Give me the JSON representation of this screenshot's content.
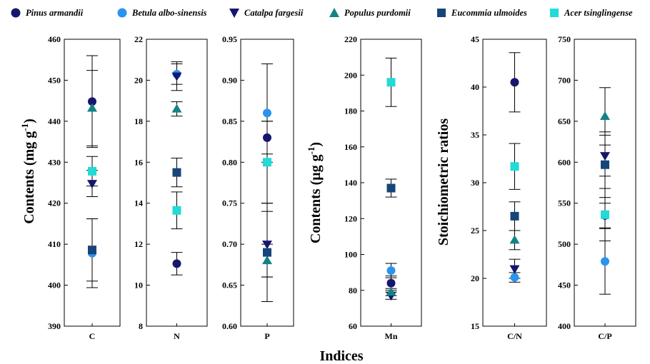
{
  "legend": [
    {
      "name": "Pinus armandii",
      "color": "#16166e",
      "marker": "circle"
    },
    {
      "name": "Betula albo-sinensis",
      "color": "#2a93f0",
      "marker": "circle"
    },
    {
      "name": "Catalpa fargesii",
      "color": "#16166e",
      "marker": "triangle-down"
    },
    {
      "name": "Populus purdomii",
      "color": "#138383",
      "marker": "triangle-up"
    },
    {
      "name": "Eucommia ulmoides",
      "color": "#17457a",
      "marker": "square"
    },
    {
      "name": "Acer tsinglingense",
      "color": "#22dad6",
      "marker": "square"
    }
  ],
  "x_title": "Indices",
  "y_titles": {
    "left": "Contents (mg g-1)",
    "middle": "Contents (μg g-1)",
    "right": "Stoichiometric ratios"
  },
  "chart_data": [
    {
      "type": "scatter",
      "category": "C",
      "ylim": [
        390,
        460
      ],
      "ticks": [
        "390",
        "400",
        "410",
        "420",
        "430",
        "440",
        "450",
        "460"
      ],
      "series": [
        {
          "name": "Pinus armandii",
          "value": 444.8,
          "error": 11.2
        },
        {
          "name": "Betula albo-sinensis",
          "value": 407.8,
          "error": 8.4
        },
        {
          "name": "Catalpa fargesii",
          "value": 424.8,
          "error": 3.2
        },
        {
          "name": "Populus purdomii",
          "value": 443.2,
          "error": 9.2
        },
        {
          "name": "Eucommia ulmoides",
          "value": 408.6,
          "error": 7.6
        },
        {
          "name": "Acer tsinglingense",
          "value": 427.8,
          "error": 3.6
        }
      ]
    },
    {
      "type": "scatter",
      "category": "N",
      "ylim": [
        8,
        22
      ],
      "ticks": [
        "8",
        "10",
        "12",
        "14",
        "16",
        "18",
        "20",
        "22"
      ],
      "series": [
        {
          "name": "Pinus armandii",
          "value": 11.05,
          "error": 0.55
        },
        {
          "name": "Betula albo-sinensis",
          "value": 20.3,
          "error": 0.5
        },
        {
          "name": "Catalpa fargesii",
          "value": 20.2,
          "error": 0.7
        },
        {
          "name": "Populus purdomii",
          "value": 18.6,
          "error": 0.35
        },
        {
          "name": "Eucommia ulmoides",
          "value": 15.5,
          "error": 0.7
        },
        {
          "name": "Acer tsinglingense",
          "value": 13.65,
          "error": 0.9
        }
      ]
    },
    {
      "type": "scatter",
      "category": "P",
      "ylim": [
        0.6,
        0.95
      ],
      "ticks": [
        "0.60",
        "0.65",
        "0.70",
        "0.75",
        "0.80",
        "0.85",
        "0.90",
        "0.95"
      ],
      "series": [
        {
          "name": "Pinus armandii",
          "value": 0.83,
          "error": 0.02
        },
        {
          "name": "Betula albo-sinensis",
          "value": 0.86,
          "error": 0.06
        },
        {
          "name": "Catalpa fargesii",
          "value": 0.7,
          "error": 0.04
        },
        {
          "name": "Populus purdomii",
          "value": 0.68,
          "error": 0.02
        },
        {
          "name": "Eucommia ulmoides",
          "value": 0.69,
          "error": 0.06
        },
        {
          "name": "Acer tsinglingense",
          "value": 0.8,
          "error": 0.05
        }
      ]
    },
    {
      "type": "scatter",
      "category": "Mn",
      "ylim": [
        60,
        220
      ],
      "ticks": [
        "60",
        "80",
        "100",
        "120",
        "140",
        "160",
        "180",
        "200",
        "220"
      ],
      "series": [
        {
          "name": "Pinus armandii",
          "value": 84,
          "error": 4
        },
        {
          "name": "Betula albo-sinensis",
          "value": 91,
          "error": 4
        },
        {
          "name": "Catalpa fargesii",
          "value": 77,
          "error": 2
        },
        {
          "name": "Populus purdomii",
          "value": 79,
          "error": 2
        },
        {
          "name": "Eucommia ulmoides",
          "value": 137,
          "error": 5
        },
        {
          "name": "Acer tsinglingense",
          "value": 196,
          "error": 13.5
        }
      ]
    },
    {
      "type": "scatter",
      "category": "C/N",
      "ylim": [
        15,
        45
      ],
      "ticks": [
        "15",
        "20",
        "25",
        "30",
        "35",
        "40",
        "45"
      ],
      "series": [
        {
          "name": "Pinus armandii",
          "value": 40.5,
          "error": 3.1
        },
        {
          "name": "Betula albo-sinensis",
          "value": 20.1,
          "error": 0.5
        },
        {
          "name": "Catalpa fargesii",
          "value": 21.0,
          "error": 1.0
        },
        {
          "name": "Populus purdomii",
          "value": 24.0,
          "error": 1.0
        },
        {
          "name": "Eucommia ulmoides",
          "value": 26.5,
          "error": 1.5
        },
        {
          "name": "Acer tsinglingense",
          "value": 31.7,
          "error": 2.4
        }
      ]
    },
    {
      "type": "scatter",
      "category": "C/P",
      "ylim": [
        400,
        750
      ],
      "ticks": [
        "400",
        "450",
        "500",
        "550",
        "600",
        "650",
        "700",
        "750"
      ],
      "series": [
        {
          "name": "Pinus armandii",
          "value": 535,
          "error": 15
        },
        {
          "name": "Betula albo-sinensis",
          "value": 479,
          "error": 40
        },
        {
          "name": "Catalpa fargesii",
          "value": 608,
          "error": 25
        },
        {
          "name": "Populus purdomii",
          "value": 656,
          "error": 35
        },
        {
          "name": "Eucommia ulmoides",
          "value": 597,
          "error": 40
        },
        {
          "name": "Acer tsinglingense",
          "value": 536,
          "error": 32
        }
      ]
    }
  ]
}
